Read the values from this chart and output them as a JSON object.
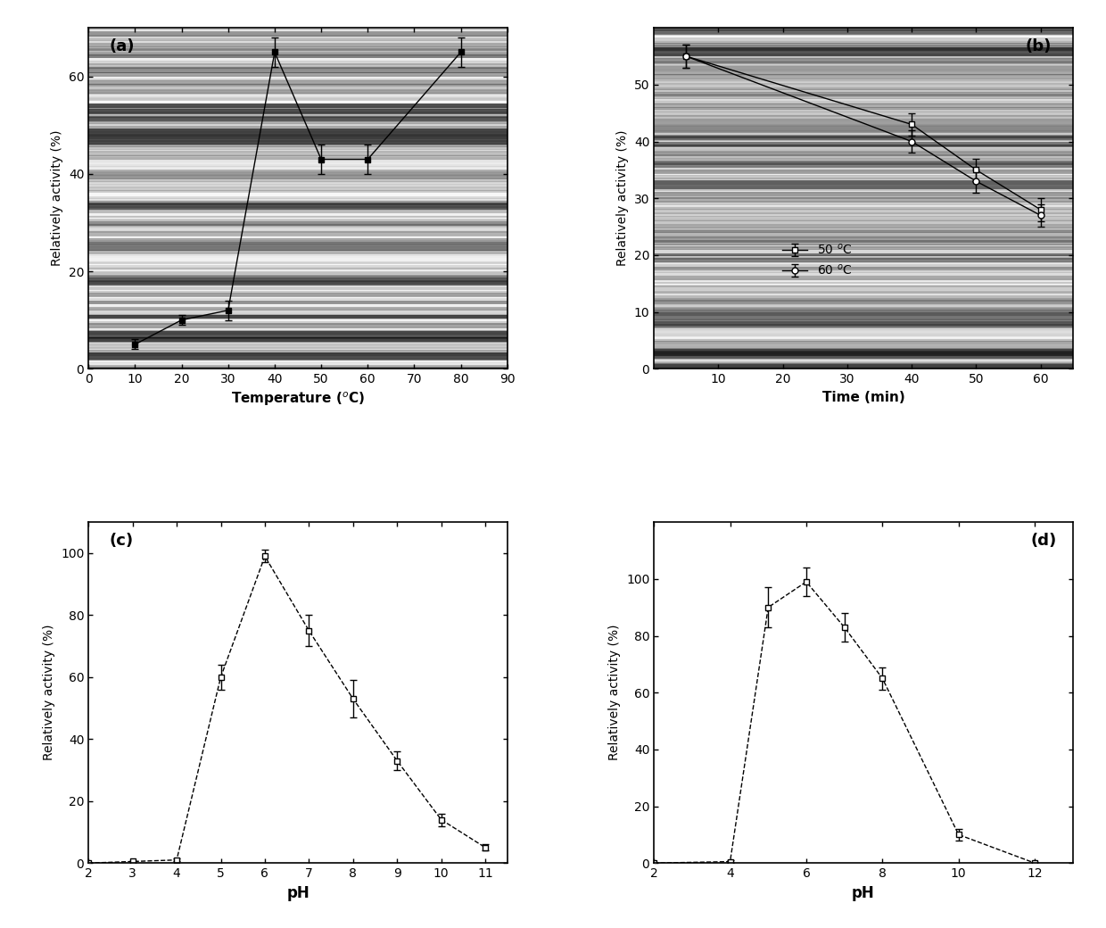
{
  "panel_a": {
    "label": "(a)",
    "xlabel": "Temperature ($^o$C)",
    "ylabel": "Relatively activity (%)",
    "xlim": [
      0,
      90
    ],
    "ylim": [
      0,
      70
    ],
    "xticks": [
      0,
      10,
      20,
      30,
      40,
      50,
      60,
      70,
      80,
      90
    ],
    "yticks": [
      0,
      20,
      40,
      60
    ],
    "x": [
      10,
      20,
      30,
      40,
      50,
      60,
      80
    ],
    "y": [
      5,
      10,
      12,
      65,
      43,
      43,
      65
    ],
    "yerr": [
      1,
      1,
      2,
      3,
      3,
      3,
      3
    ]
  },
  "panel_b": {
    "label": "(b)",
    "xlabel": "Time (min)",
    "ylabel": "Relatively activity (%)",
    "xlim": [
      0,
      65
    ],
    "ylim": [
      0,
      60
    ],
    "xticks": [
      10,
      20,
      30,
      40,
      50,
      60
    ],
    "yticks": [
      0,
      10,
      20,
      30,
      40,
      50
    ],
    "series": [
      {
        "label": "50 $^o$C",
        "marker": "s",
        "x": [
          5,
          40,
          50,
          60
        ],
        "y": [
          55,
          43,
          35,
          28
        ],
        "yerr": [
          2,
          2,
          2,
          2
        ]
      },
      {
        "label": "60 $^o$C",
        "marker": "o",
        "x": [
          5,
          40,
          50,
          60
        ],
        "y": [
          55,
          40,
          33,
          27
        ],
        "yerr": [
          2,
          2,
          2,
          2
        ]
      }
    ]
  },
  "panel_c": {
    "label": "(c)",
    "xlabel": "pH",
    "ylabel": "Relatively activity (%)",
    "xlim": [
      2,
      11.5
    ],
    "ylim": [
      0,
      110
    ],
    "xticks": [
      2,
      3,
      4,
      5,
      6,
      7,
      8,
      9,
      10,
      11
    ],
    "yticks": [
      0,
      20,
      40,
      60,
      80,
      100
    ],
    "x": [
      2,
      3,
      4,
      5,
      6,
      7,
      8,
      9,
      10,
      11
    ],
    "y": [
      0,
      0.5,
      1,
      60,
      99,
      75,
      53,
      33,
      14,
      5
    ],
    "yerr": [
      0,
      0,
      0.5,
      4,
      2,
      5,
      6,
      3,
      2,
      1
    ]
  },
  "panel_d": {
    "label": "(d)",
    "xlabel": "pH",
    "ylabel": "Relatively activity (%)",
    "xlim": [
      2,
      13
    ],
    "ylim": [
      0,
      120
    ],
    "xticks": [
      2,
      4,
      6,
      8,
      10,
      12
    ],
    "yticks": [
      0,
      20,
      40,
      60,
      80,
      100
    ],
    "x": [
      2,
      4,
      5,
      6,
      7,
      8,
      10,
      12
    ],
    "y": [
      0,
      0.5,
      90,
      99,
      83,
      65,
      10,
      0
    ],
    "yerr": [
      0,
      0.5,
      7,
      5,
      5,
      4,
      2,
      0.5
    ]
  },
  "scan_noise_seed": 42,
  "background_color": "#ffffff"
}
